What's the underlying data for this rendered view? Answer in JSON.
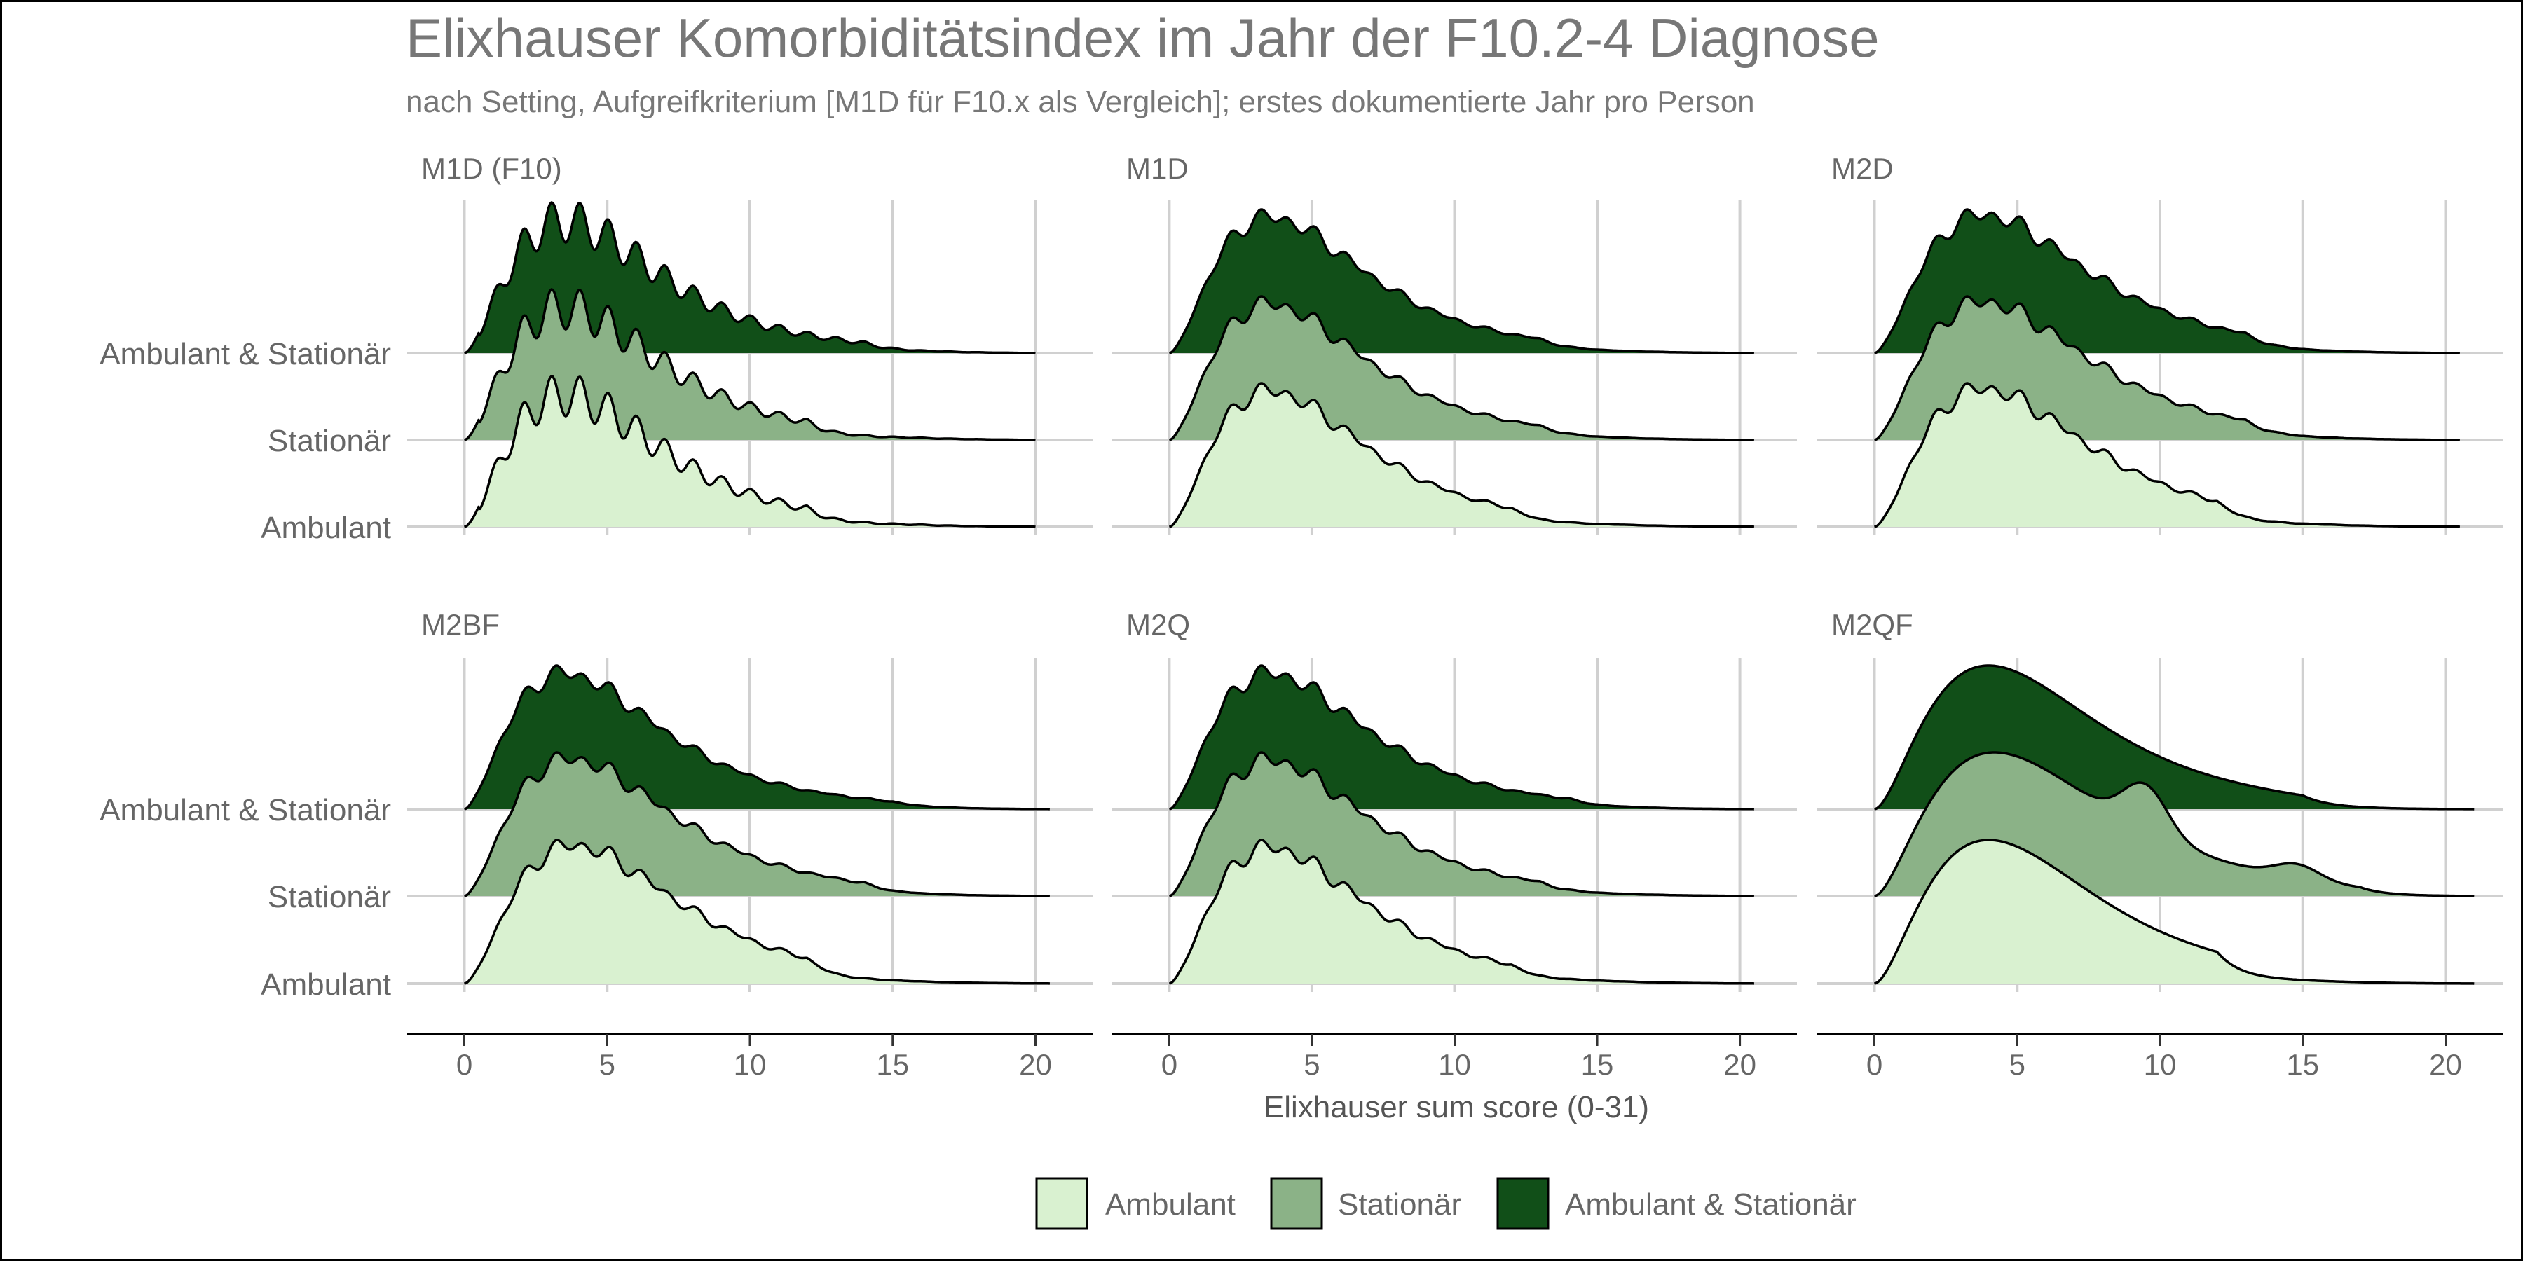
{
  "chart_data": {
    "type": "ridgeline",
    "title": "Elixhauser Komorbiditätsindex im Jahr der F10.2-4 Diagnose",
    "subtitle": "nach Setting, Aufgreifkriterium [M1D für F10.x als Vergleich]; erstes dokumentierte Jahr pro Person",
    "xlabel": "Elixhauser sum score (0-31)",
    "xlim": [
      -2,
      22
    ],
    "x_ticks": [
      0,
      5,
      10,
      15,
      20
    ],
    "row_labels": [
      "Ambulant & Stationär",
      "Stationär",
      "Ambulant"
    ],
    "legend": {
      "position": "bottom",
      "entries": [
        {
          "name": "Ambulant",
          "color": "#d9f1d0"
        },
        {
          "name": "Stationär",
          "color": "#8bb287"
        },
        {
          "name": "Ambulant & Stationär",
          "color": "#114f18"
        }
      ]
    },
    "grid": true,
    "panels": [
      {
        "name": "M1D (F10)",
        "shape": "spiky",
        "series": [
          {
            "name": "Ambulant",
            "peak": 3.5,
            "spread": 2.0,
            "tail": 12,
            "end": 20
          },
          {
            "name": "Stationär",
            "peak": 3.5,
            "spread": 2.0,
            "tail": 12,
            "end": 20
          },
          {
            "name": "Ambulant & Stationär",
            "peak": 3.5,
            "spread": 2.0,
            "tail": 14,
            "end": 20
          }
        ]
      },
      {
        "name": "M1D",
        "shape": "wiggly",
        "series": [
          {
            "name": "Ambulant",
            "peak": 3.5,
            "spread": 2.2,
            "tail": 12,
            "end": 20.5
          },
          {
            "name": "Stationär",
            "peak": 3.5,
            "spread": 2.3,
            "tail": 13,
            "end": 20.5
          },
          {
            "name": "Ambulant & Stationär",
            "peak": 3.5,
            "spread": 2.3,
            "tail": 13,
            "end": 20.5
          }
        ]
      },
      {
        "name": "M2D",
        "shape": "wiggly",
        "series": [
          {
            "name": "Ambulant",
            "peak": 3.8,
            "spread": 2.2,
            "tail": 12,
            "end": 20.5
          },
          {
            "name": "Stationär",
            "peak": 3.8,
            "spread": 2.3,
            "tail": 13,
            "end": 20.5
          },
          {
            "name": "Ambulant & Stationär",
            "peak": 3.8,
            "spread": 2.3,
            "tail": 13,
            "end": 20.5
          }
        ]
      },
      {
        "name": "M2BF",
        "shape": "wiggly",
        "series": [
          {
            "name": "Ambulant",
            "peak": 3.8,
            "spread": 2.3,
            "tail": 12,
            "end": 20.5
          },
          {
            "name": "Stationär",
            "peak": 3.7,
            "spread": 2.3,
            "tail": 14,
            "end": 20.5
          },
          {
            "name": "Ambulant & Stationär",
            "peak": 3.5,
            "spread": 2.3,
            "tail": 15,
            "end": 20.5
          }
        ]
      },
      {
        "name": "M2Q",
        "shape": "wiggly",
        "series": [
          {
            "name": "Ambulant",
            "peak": 3.5,
            "spread": 2.2,
            "tail": 12,
            "end": 20.5
          },
          {
            "name": "Stationär",
            "peak": 3.5,
            "spread": 2.3,
            "tail": 13,
            "end": 20.5
          },
          {
            "name": "Ambulant & Stationär",
            "peak": 3.5,
            "spread": 2.3,
            "tail": 14,
            "end": 20.5
          }
        ]
      },
      {
        "name": "M2QF",
        "shape": "smooth",
        "series": [
          {
            "name": "Ambulant",
            "peak": 4.0,
            "spread": 2.8,
            "tail": 12,
            "end": 21
          },
          {
            "name": "Stationär",
            "peak": 4.2,
            "spread": 2.6,
            "tail": 17,
            "end": 21,
            "bumps": [
              [
                9.5,
                0.32
              ],
              [
                14.8,
                0.1
              ]
            ]
          },
          {
            "name": "Ambulant & Stationär",
            "peak": 4.0,
            "spread": 2.8,
            "tail": 15,
            "end": 21
          }
        ]
      }
    ]
  }
}
